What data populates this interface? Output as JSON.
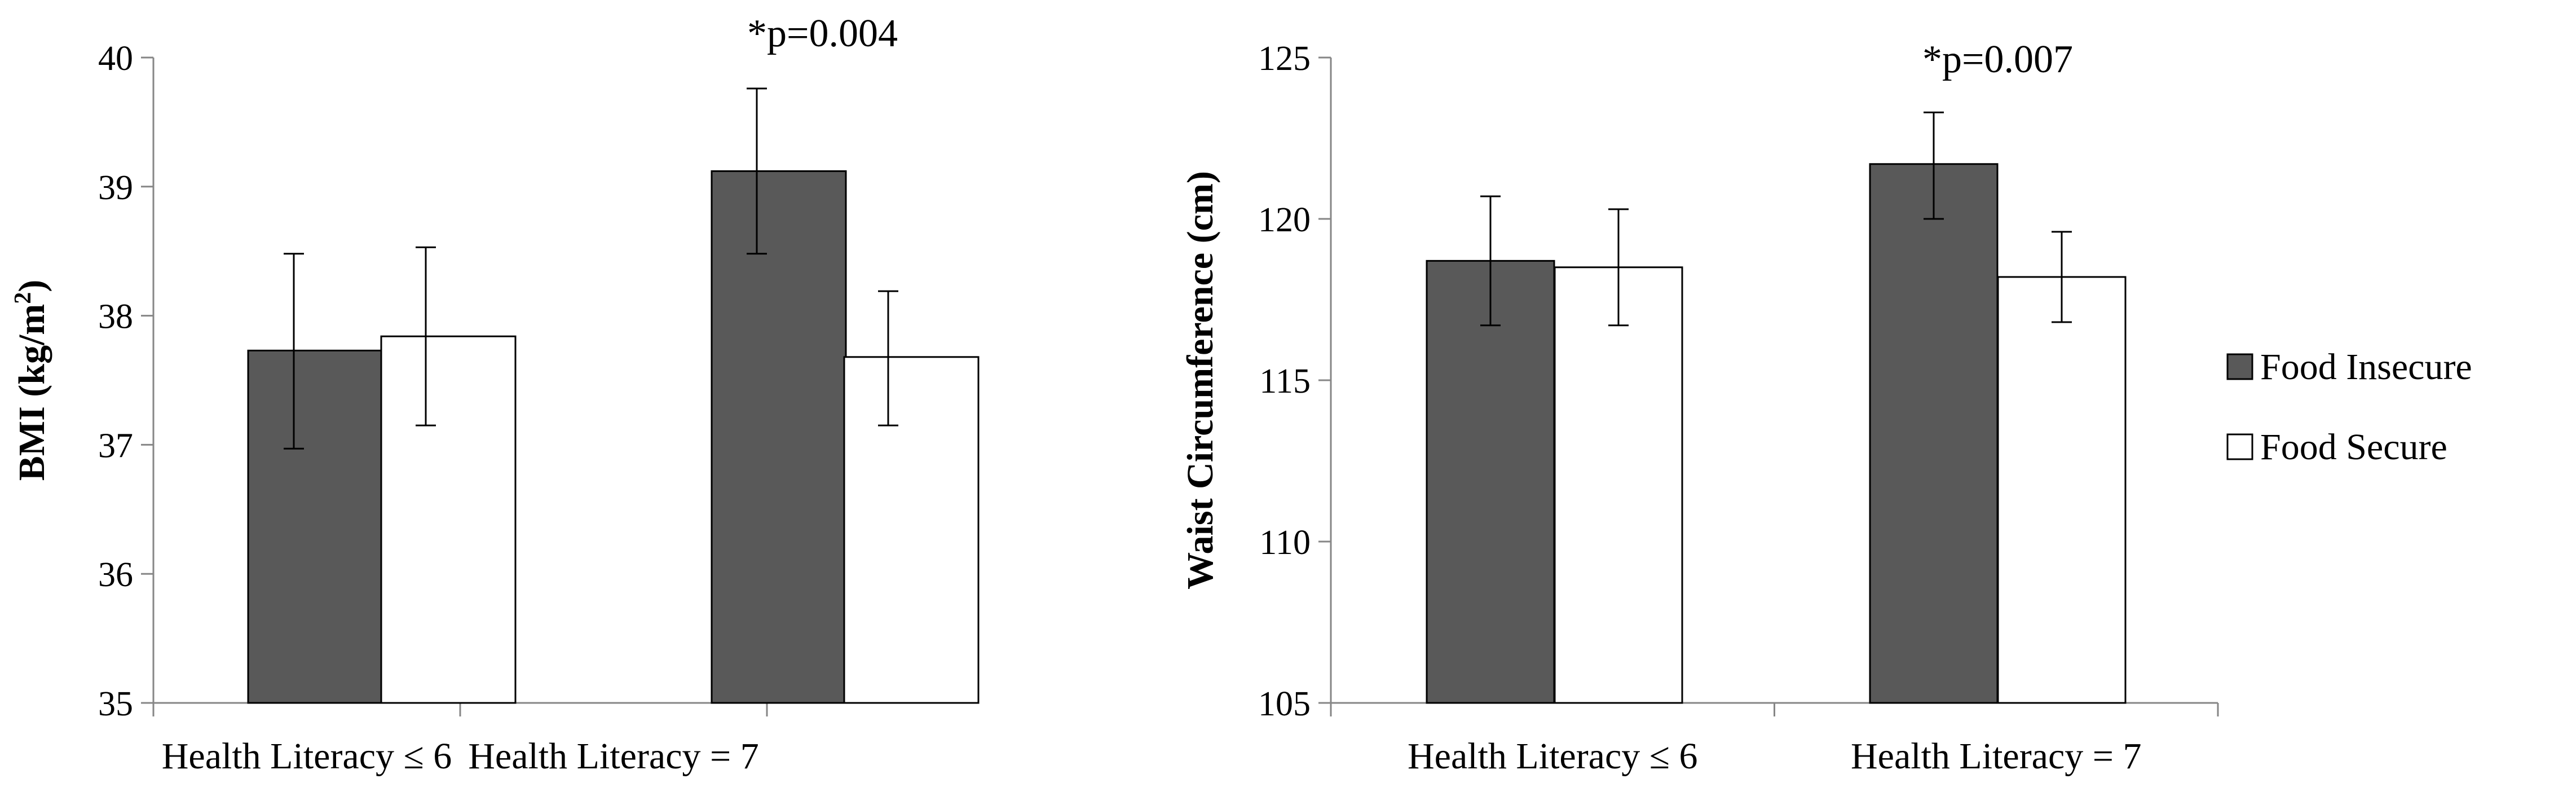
{
  "legend": [
    {
      "name": "Food Insecure",
      "color": "#595959"
    },
    {
      "name": "Food Secure",
      "color": "#ffffff"
    }
  ],
  "chart_data": [
    {
      "type": "bar",
      "ylabel": "BMI (kg/m",
      "ylabel_sup": "2",
      "ylabel_end": ")",
      "ylim": [
        35,
        40
      ],
      "yticks": [
        "35",
        "36",
        "37",
        "38",
        "39",
        "40"
      ],
      "categories": [
        "Health Literacy ≤ 6",
        "Health Literacy = 7"
      ],
      "series": [
        {
          "name": "Food Insecure",
          "values": [
            37.73,
            39.12
          ],
          "err_low": [
            36.97,
            38.48
          ],
          "err_high": [
            38.48,
            39.76
          ]
        },
        {
          "name": "Food Secure",
          "values": [
            37.84,
            37.68
          ],
          "err_low": [
            37.15,
            37.15
          ],
          "err_high": [
            38.53,
            38.19
          ]
        }
      ],
      "annotations": [
        {
          "category": 1,
          "text": "*p=0.004"
        }
      ]
    },
    {
      "type": "bar",
      "ylabel": "Waist Circumference (cm)",
      "ylabel_sup": "",
      "ylabel_end": "",
      "ylim": [
        105,
        125
      ],
      "yticks": [
        "105",
        "110",
        "115",
        "120",
        "125"
      ],
      "categories": [
        "Health Literacy ≤ 6",
        "Health Literacy = 7"
      ],
      "series": [
        {
          "name": "Food Insecure",
          "values": [
            118.7,
            121.7
          ],
          "err_low": [
            116.7,
            120.0
          ],
          "err_high": [
            120.7,
            123.3
          ]
        },
        {
          "name": "Food Secure",
          "values": [
            118.5,
            118.2
          ],
          "err_low": [
            116.7,
            116.8
          ],
          "err_high": [
            120.3,
            119.6
          ]
        }
      ],
      "annotations": [
        {
          "category": 1,
          "text": "*p=0.007"
        }
      ]
    }
  ]
}
